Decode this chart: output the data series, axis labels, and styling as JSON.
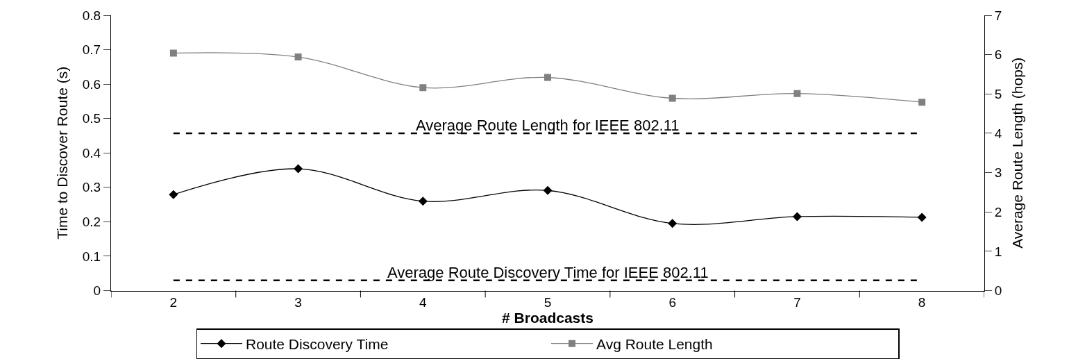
{
  "chart_data": {
    "type": "line",
    "xlabel": "# Broadcasts",
    "ylabel": "Time to Discover Route (s)",
    "y2label": "Average Route Length (hops)",
    "categories": [
      "2",
      "3",
      "4",
      "5",
      "6",
      "7",
      "8"
    ],
    "series": [
      {
        "name": "Route Discovery Time",
        "color": "#000000",
        "marker": "diamond",
        "values": [
          0.279,
          0.354,
          0.26,
          0.291,
          0.195,
          0.215,
          0.213
        ]
      },
      {
        "name": "Avg Route Length",
        "color": "#808080",
        "marker": "square",
        "axis": "y2",
        "values": [
          6.04,
          5.94,
          5.16,
          5.42,
          4.89,
          5.01,
          4.79
        ]
      }
    ],
    "ylim": [
      0,
      0.8
    ],
    "yticks": [
      0,
      0.1,
      0.2,
      0.3,
      0.4,
      0.5,
      0.6,
      0.7,
      0.8
    ],
    "y2lim": [
      0,
      7
    ],
    "y2ticks": [
      0,
      1,
      2,
      3,
      4,
      5,
      6,
      7
    ],
    "ref_lines": [
      {
        "axis": "y2",
        "value": 4.0,
        "label": "Average Route Length for IEEE 802.11",
        "color": "#000000",
        "line_style": "dashed"
      },
      {
        "axis": "y",
        "value": 0.03,
        "label": "Average Route Discovery Time for IEEE 802.11",
        "color": "#000000",
        "line_style": "dashed"
      }
    ],
    "legend": "bottom"
  }
}
